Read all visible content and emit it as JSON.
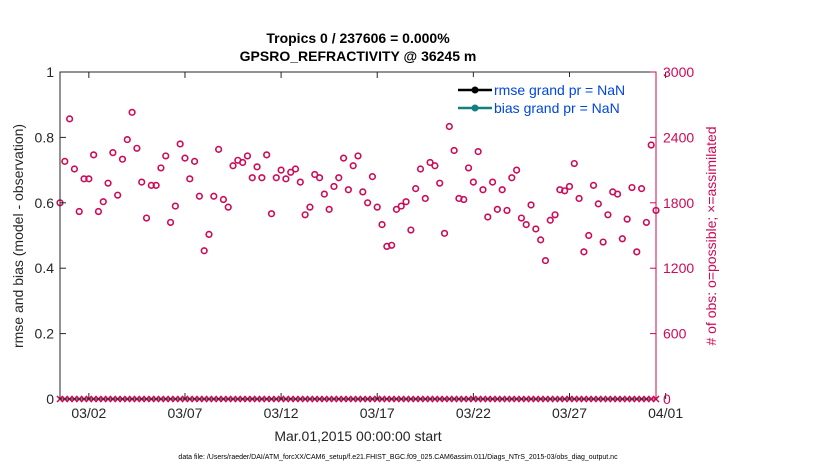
{
  "chart_data": {
    "type": "scatter",
    "title_line1": "Tropics 0 / 237606 = 0.000%",
    "title_line2": "GPSRO_REFRACTIVITY @ 36245 m",
    "ylabel_left": "rmse and bias (model - observation)",
    "ylabel_right": "# of obs: o=possible; ×=assimilated",
    "xlabel": "Mar.01,2015 00:00:00 start",
    "footnote": "data file: /Users/raeder/DAI/ATM_forcXX/CAM6_setup/f.e21.FHIST_BGC.f09_025.CAM6assim.011/Diags_NTrS_2015-03/obs_diag_output.nc",
    "ylim_left": [
      0,
      1
    ],
    "ylim_right": [
      0,
      3000
    ],
    "xlim_days": [
      0.5,
      31.5
    ],
    "left_ticks": [
      {
        "v": 0,
        "label": "0"
      },
      {
        "v": 0.2,
        "label": "0.2"
      },
      {
        "v": 0.4,
        "label": "0.4"
      },
      {
        "v": 0.6,
        "label": "0.6"
      },
      {
        "v": 0.8,
        "label": "0.8"
      },
      {
        "v": 1,
        "label": "1"
      }
    ],
    "right_ticks": [
      {
        "v": 0,
        "label": "0"
      },
      {
        "v": 600,
        "label": "600"
      },
      {
        "v": 1200,
        "label": "1200"
      },
      {
        "v": 1800,
        "label": "1800"
      },
      {
        "v": 2400,
        "label": "2400"
      },
      {
        "v": 3000,
        "label": "3000"
      }
    ],
    "x_ticks": [
      {
        "v": 2,
        "label": "03/02"
      },
      {
        "v": 7,
        "label": "03/07"
      },
      {
        "v": 12,
        "label": "03/12"
      },
      {
        "v": 17,
        "label": "03/17"
      },
      {
        "v": 22,
        "label": "03/22"
      },
      {
        "v": 27,
        "label": "03/27"
      },
      {
        "v": 32,
        "label": "04/01"
      }
    ],
    "legend": [
      {
        "name": "rmse grand pr = NaN",
        "color": "#000000"
      },
      {
        "name": "bias grand pr = NaN",
        "color": "#138080"
      }
    ],
    "colors": {
      "possible": "#cc0a57",
      "axis_right": "#cc0a57",
      "legend_text": "#0046dd",
      "bias": "#138080",
      "rmse": "#000000"
    },
    "possible_series": {
      "name": "possible",
      "points": [
        [
          0.5,
          1800
        ],
        [
          0.75,
          2180
        ],
        [
          1.0,
          2570
        ],
        [
          1.25,
          2110
        ],
        [
          1.5,
          1720
        ],
        [
          1.75,
          2020
        ],
        [
          2.0,
          2020
        ],
        [
          2.25,
          2240
        ],
        [
          2.5,
          1720
        ],
        [
          2.75,
          1810
        ],
        [
          3.0,
          1980
        ],
        [
          3.25,
          2260
        ],
        [
          3.5,
          1870
        ],
        [
          3.75,
          2200
        ],
        [
          4.0,
          2380
        ],
        [
          4.25,
          2630
        ],
        [
          4.5,
          2300
        ],
        [
          4.75,
          1990
        ],
        [
          5.0,
          1660
        ],
        [
          5.25,
          1960
        ],
        [
          5.5,
          1960
        ],
        [
          5.75,
          2120
        ],
        [
          6.0,
          2230
        ],
        [
          6.25,
          1620
        ],
        [
          6.5,
          1770
        ],
        [
          6.75,
          2340
        ],
        [
          7.0,
          2210
        ],
        [
          7.25,
          2020
        ],
        [
          7.5,
          2180
        ],
        [
          7.75,
          1860
        ],
        [
          8.0,
          1360
        ],
        [
          8.25,
          1510
        ],
        [
          8.5,
          1860
        ],
        [
          8.75,
          2290
        ],
        [
          9.0,
          1830
        ],
        [
          9.25,
          1760
        ],
        [
          9.5,
          2140
        ],
        [
          9.75,
          2190
        ],
        [
          10.0,
          2170
        ],
        [
          10.25,
          2230
        ],
        [
          10.5,
          2030
        ],
        [
          10.75,
          2130
        ],
        [
          11.0,
          2030
        ],
        [
          11.25,
          2240
        ],
        [
          11.5,
          1700
        ],
        [
          11.75,
          2030
        ],
        [
          12.0,
          2100
        ],
        [
          12.25,
          2020
        ],
        [
          12.5,
          2080
        ],
        [
          12.75,
          2110
        ],
        [
          13.0,
          1990
        ],
        [
          13.25,
          1690
        ],
        [
          13.5,
          1760
        ],
        [
          13.75,
          2060
        ],
        [
          14.0,
          2030
        ],
        [
          14.25,
          1880
        ],
        [
          14.5,
          1740
        ],
        [
          14.75,
          1950
        ],
        [
          15.0,
          2030
        ],
        [
          15.25,
          2210
        ],
        [
          15.5,
          1920
        ],
        [
          15.75,
          2140
        ],
        [
          16.0,
          2230
        ],
        [
          16.25,
          1900
        ],
        [
          16.5,
          1800
        ],
        [
          16.75,
          2040
        ],
        [
          17.0,
          1760
        ],
        [
          17.25,
          1600
        ],
        [
          17.5,
          1400
        ],
        [
          17.75,
          1410
        ],
        [
          18.0,
          1740
        ],
        [
          18.25,
          1770
        ],
        [
          18.5,
          1810
        ],
        [
          18.75,
          1550
        ],
        [
          19.0,
          1930
        ],
        [
          19.25,
          2110
        ],
        [
          19.5,
          1840
        ],
        [
          19.75,
          2170
        ],
        [
          20.0,
          2140
        ],
        [
          20.25,
          1980
        ],
        [
          20.5,
          1520
        ],
        [
          20.75,
          2500
        ],
        [
          21.0,
          2280
        ],
        [
          21.25,
          1840
        ],
        [
          21.5,
          1830
        ],
        [
          21.75,
          2120
        ],
        [
          22.0,
          1990
        ],
        [
          22.25,
          2270
        ],
        [
          22.5,
          1920
        ],
        [
          22.75,
          1670
        ],
        [
          23.0,
          1990
        ],
        [
          23.25,
          1740
        ],
        [
          23.5,
          1920
        ],
        [
          23.75,
          1730
        ],
        [
          24.0,
          2030
        ],
        [
          24.25,
          2100
        ],
        [
          24.5,
          1660
        ],
        [
          24.75,
          1600
        ],
        [
          25.0,
          1780
        ],
        [
          25.25,
          1560
        ],
        [
          25.5,
          1460
        ],
        [
          25.75,
          1270
        ],
        [
          26.0,
          1640
        ],
        [
          26.25,
          1690
        ],
        [
          26.5,
          1920
        ],
        [
          26.75,
          1910
        ],
        [
          27.0,
          1950
        ],
        [
          27.25,
          2160
        ],
        [
          27.5,
          1840
        ],
        [
          27.75,
          1350
        ],
        [
          28.0,
          1500
        ],
        [
          28.25,
          1960
        ],
        [
          28.5,
          1790
        ],
        [
          28.75,
          1440
        ],
        [
          29.0,
          1690
        ],
        [
          29.25,
          1900
        ],
        [
          29.5,
          1880
        ],
        [
          29.75,
          1470
        ],
        [
          30.0,
          1650
        ],
        [
          30.25,
          1940
        ],
        [
          30.5,
          1350
        ],
        [
          30.75,
          1930
        ],
        [
          31.0,
          1620
        ],
        [
          31.25,
          2330
        ],
        [
          31.5,
          1730
        ]
      ]
    },
    "assimilated_series": {
      "name": "assimilated",
      "points": [
        [
          0.5,
          0
        ],
        [
          0.75,
          0
        ],
        [
          1.0,
          0
        ],
        [
          1.25,
          0
        ],
        [
          1.5,
          0
        ],
        [
          1.75,
          0
        ],
        [
          2.0,
          0
        ],
        [
          2.25,
          0
        ],
        [
          2.5,
          0
        ],
        [
          2.75,
          0
        ],
        [
          3.0,
          0
        ],
        [
          3.25,
          0
        ],
        [
          3.5,
          0
        ],
        [
          3.75,
          0
        ],
        [
          4.0,
          0
        ],
        [
          4.25,
          0
        ],
        [
          4.5,
          0
        ],
        [
          4.75,
          0
        ],
        [
          5.0,
          0
        ],
        [
          5.25,
          0
        ],
        [
          5.5,
          0
        ],
        [
          5.75,
          0
        ],
        [
          6.0,
          0
        ],
        [
          6.25,
          0
        ],
        [
          6.5,
          0
        ],
        [
          6.75,
          0
        ],
        [
          7.0,
          0
        ],
        [
          7.25,
          0
        ],
        [
          7.5,
          0
        ],
        [
          7.75,
          0
        ],
        [
          8.0,
          0
        ],
        [
          8.25,
          0
        ],
        [
          8.5,
          0
        ],
        [
          8.75,
          0
        ],
        [
          9.0,
          0
        ],
        [
          9.25,
          0
        ],
        [
          9.5,
          0
        ],
        [
          9.75,
          0
        ],
        [
          10.0,
          0
        ],
        [
          10.25,
          0
        ],
        [
          10.5,
          0
        ],
        [
          10.75,
          0
        ],
        [
          11.0,
          0
        ],
        [
          11.25,
          0
        ],
        [
          11.5,
          0
        ],
        [
          11.75,
          0
        ],
        [
          12.0,
          0
        ],
        [
          12.25,
          0
        ],
        [
          12.5,
          0
        ],
        [
          12.75,
          0
        ],
        [
          13.0,
          0
        ],
        [
          13.25,
          0
        ],
        [
          13.5,
          0
        ],
        [
          13.75,
          0
        ],
        [
          14.0,
          0
        ],
        [
          14.25,
          0
        ],
        [
          14.5,
          0
        ],
        [
          14.75,
          0
        ],
        [
          15.0,
          0
        ],
        [
          15.25,
          0
        ],
        [
          15.5,
          0
        ],
        [
          15.75,
          0
        ],
        [
          16.0,
          0
        ],
        [
          16.25,
          0
        ],
        [
          16.5,
          0
        ],
        [
          16.75,
          0
        ],
        [
          17.0,
          0
        ],
        [
          17.25,
          0
        ],
        [
          17.5,
          0
        ],
        [
          17.75,
          0
        ],
        [
          18.0,
          0
        ],
        [
          18.25,
          0
        ],
        [
          18.5,
          0
        ],
        [
          18.75,
          0
        ],
        [
          19.0,
          0
        ],
        [
          19.25,
          0
        ],
        [
          19.5,
          0
        ],
        [
          19.75,
          0
        ],
        [
          20.0,
          0
        ],
        [
          20.25,
          0
        ],
        [
          20.5,
          0
        ],
        [
          20.75,
          0
        ],
        [
          21.0,
          0
        ],
        [
          21.25,
          0
        ],
        [
          21.5,
          0
        ],
        [
          21.75,
          0
        ],
        [
          22.0,
          0
        ],
        [
          22.25,
          0
        ],
        [
          22.5,
          0
        ],
        [
          22.75,
          0
        ],
        [
          23.0,
          0
        ],
        [
          23.25,
          0
        ],
        [
          23.5,
          0
        ],
        [
          23.75,
          0
        ],
        [
          24.0,
          0
        ],
        [
          24.25,
          0
        ],
        [
          24.5,
          0
        ],
        [
          24.75,
          0
        ],
        [
          25.0,
          0
        ],
        [
          25.25,
          0
        ],
        [
          25.5,
          0
        ],
        [
          25.75,
          0
        ],
        [
          26.0,
          0
        ],
        [
          26.25,
          0
        ],
        [
          26.5,
          0
        ],
        [
          26.75,
          0
        ],
        [
          27.0,
          0
        ],
        [
          27.25,
          0
        ],
        [
          27.5,
          0
        ],
        [
          27.75,
          0
        ],
        [
          28.0,
          0
        ],
        [
          28.25,
          0
        ],
        [
          28.5,
          0
        ],
        [
          28.75,
          0
        ],
        [
          29.0,
          0
        ],
        [
          29.25,
          0
        ],
        [
          29.5,
          0
        ],
        [
          29.75,
          0
        ],
        [
          30.0,
          0
        ],
        [
          30.25,
          0
        ],
        [
          30.5,
          0
        ],
        [
          30.75,
          0
        ],
        [
          31.0,
          0
        ],
        [
          31.25,
          0
        ],
        [
          31.5,
          0
        ]
      ]
    }
  }
}
